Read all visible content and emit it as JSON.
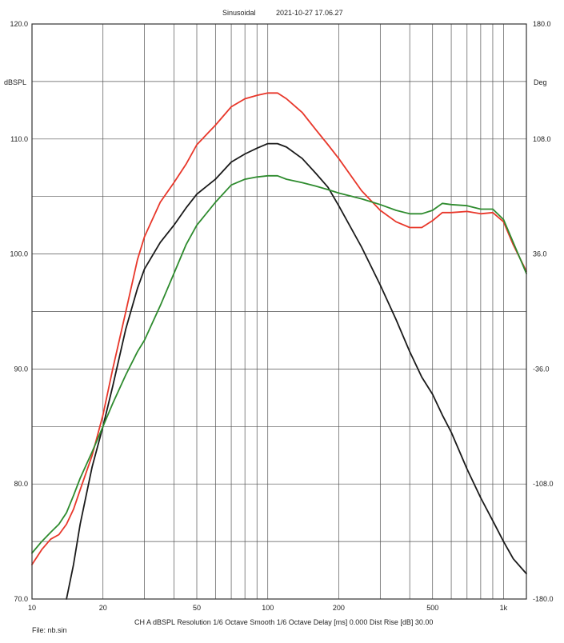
{
  "chart_data": {
    "type": "line",
    "header": {
      "mode": "Sinusoidal",
      "timestamp": "2021-10-27 17.06.27"
    },
    "y_left": {
      "label": "dBSPL",
      "range": [
        70,
        120
      ],
      "ticks": [
        "120.0",
        "110.0",
        "100.0",
        "90.0",
        "80.0",
        "70.0"
      ],
      "tick_values": [
        120,
        110,
        100,
        90,
        80,
        70
      ]
    },
    "y_right": {
      "label": "Deg",
      "range": [
        -180,
        180
      ],
      "ticks": [
        "180.0",
        "108.0",
        "36.0",
        "-36.0",
        "-108.0",
        "-180.0"
      ],
      "tick_values": [
        180,
        108,
        36,
        -36,
        -108,
        -180
      ]
    },
    "x": {
      "scale": "log",
      "range": [
        10,
        1250
      ],
      "ticks": [
        "10",
        "20",
        "50",
        "100",
        "200",
        "500",
        "1k"
      ],
      "tick_values": [
        10,
        20,
        50,
        100,
        200,
        500,
        1000
      ]
    },
    "grid": true,
    "footer": {
      "file": "File: nb.sin",
      "info": "CH A   dBSPL   Resolution 1/6 Octave   Smooth 1/6 Octave   Delay [ms] 0.000   Dist Rise [dB] 30.00"
    },
    "series": [
      {
        "color": "#e8372a",
        "x": [
          10,
          11,
          12,
          13,
          14,
          15,
          16,
          18,
          20,
          22,
          25,
          28,
          30,
          35,
          40,
          45,
          50,
          60,
          70,
          80,
          90,
          100,
          110,
          120,
          140,
          160,
          180,
          200,
          250,
          300,
          350,
          400,
          450,
          500,
          550,
          600,
          700,
          800,
          900,
          1000,
          1100,
          1250
        ],
        "y": [
          73.0,
          74.3,
          75.2,
          75.6,
          76.5,
          77.8,
          79.5,
          82.5,
          86.0,
          90.0,
          95.0,
          99.5,
          101.5,
          104.5,
          106.2,
          107.8,
          109.5,
          111.2,
          112.8,
          113.5,
          113.8,
          114.0,
          114.0,
          113.5,
          112.3,
          110.8,
          109.5,
          108.3,
          105.5,
          103.8,
          102.8,
          102.3,
          102.3,
          102.9,
          103.6,
          103.6,
          103.7,
          103.5,
          103.6,
          102.8,
          100.8,
          98.5
        ]
      },
      {
        "color": "#1a1a1a",
        "x": [
          14,
          15,
          16,
          18,
          20,
          22,
          25,
          28,
          30,
          35,
          40,
          45,
          50,
          60,
          70,
          80,
          90,
          100,
          110,
          120,
          140,
          160,
          180,
          200,
          250,
          300,
          350,
          400,
          450,
          500,
          550,
          600,
          700,
          800,
          900,
          1000,
          1100,
          1250
        ],
        "y": [
          70.0,
          73.0,
          76.5,
          81.5,
          85.0,
          88.5,
          93.5,
          97.0,
          98.7,
          101.0,
          102.5,
          104.0,
          105.2,
          106.5,
          108.0,
          108.7,
          109.2,
          109.6,
          109.6,
          109.3,
          108.3,
          107.0,
          105.8,
          104.2,
          100.6,
          97.3,
          94.3,
          91.5,
          89.3,
          87.8,
          86.0,
          84.5,
          81.3,
          78.8,
          76.8,
          75.0,
          73.5,
          72.2
        ]
      },
      {
        "color": "#2e8b2e",
        "x": [
          10,
          11,
          12,
          13,
          14,
          15,
          16,
          18,
          20,
          22,
          25,
          28,
          30,
          35,
          40,
          45,
          50,
          60,
          70,
          80,
          90,
          100,
          110,
          120,
          140,
          160,
          180,
          200,
          250,
          300,
          350,
          400,
          450,
          500,
          550,
          600,
          700,
          800,
          900,
          1000,
          1100,
          1250
        ],
        "y": [
          74.0,
          75.0,
          75.8,
          76.5,
          77.5,
          79.0,
          80.5,
          82.8,
          85.0,
          87.0,
          89.5,
          91.5,
          92.5,
          95.5,
          98.3,
          100.8,
          102.5,
          104.5,
          106.0,
          106.5,
          106.7,
          106.8,
          106.8,
          106.5,
          106.2,
          105.9,
          105.6,
          105.3,
          104.8,
          104.3,
          103.8,
          103.5,
          103.5,
          103.8,
          104.4,
          104.3,
          104.2,
          103.9,
          103.9,
          103.0,
          101.0,
          98.3
        ]
      }
    ]
  }
}
